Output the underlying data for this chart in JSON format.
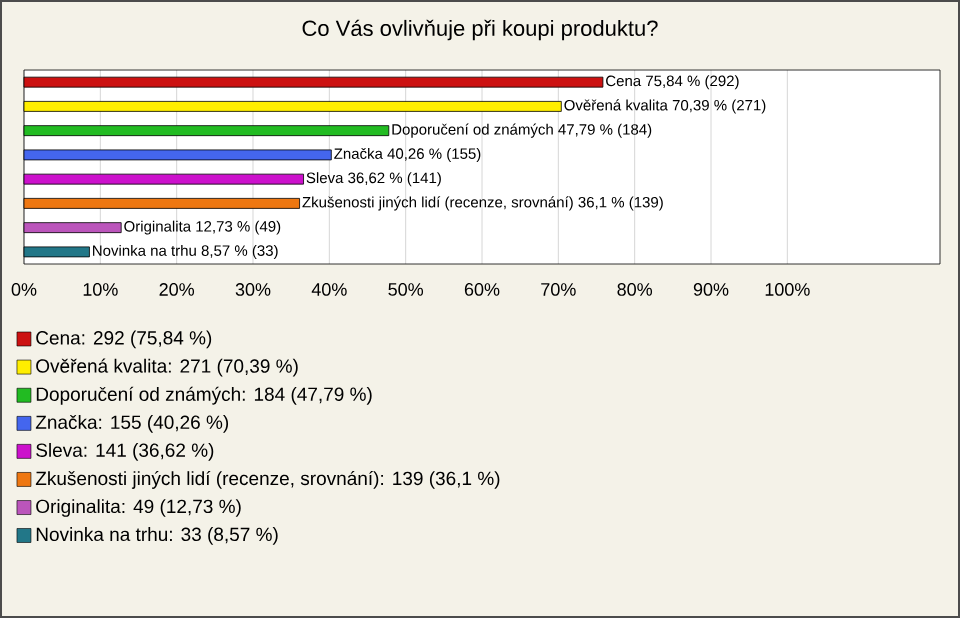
{
  "chart_data": {
    "type": "bar",
    "orientation": "horizontal",
    "title": "Co Vás ovlivňuje při koupi produktu?",
    "categories": [
      null,
      null,
      null,
      null,
      null,
      null,
      null,
      null
    ],
    "series": [
      {
        "name": "Cena: 292 (75,84 %)",
        "color": "#cc1111",
        "values": [
          75.84,
          null,
          null,
          null,
          null,
          null,
          null,
          null
        ],
        "value_labels": [
          "Cena 75,84 % (292)",
          null,
          null,
          null,
          null,
          null,
          null,
          null
        ]
      },
      {
        "name": "Ověřená kvalita: 271 (70,39 %)",
        "color": "#ffee00",
        "values": [
          null,
          70.39,
          null,
          null,
          null,
          null,
          null,
          null
        ],
        "value_labels": [
          null,
          "Ověřená kvalita 70,39 % (271)",
          null,
          null,
          null,
          null,
          null,
          null
        ]
      },
      {
        "name": "Doporučení od známých: 184 (47,79 %)",
        "color": "#22bb22",
        "values": [
          null,
          null,
          47.79,
          null,
          null,
          null,
          null,
          null
        ],
        "value_labels": [
          null,
          null,
          "Doporučení od známých 47,79 % (184)",
          null,
          null,
          null,
          null,
          null
        ]
      },
      {
        "name": "Značka: 155 (40,26 %)",
        "color": "#4466ee",
        "values": [
          null,
          null,
          null,
          40.26,
          null,
          null,
          null,
          null
        ],
        "value_labels": [
          null,
          null,
          null,
          "Značka 40,26 % (155)",
          null,
          null,
          null,
          null
        ]
      },
      {
        "name": "Sleva: 141 (36,62 %)",
        "color": "#cc11cc",
        "values": [
          null,
          null,
          null,
          null,
          36.62,
          null,
          null,
          null
        ],
        "value_labels": [
          null,
          null,
          null,
          null,
          "Sleva 36,62 % (141)",
          null,
          null,
          null
        ]
      },
      {
        "name": "Zkušenosti jiných lidí (recenze, srovnání): 139 (36,1 %)",
        "color": "#ee7711",
        "values": [
          null,
          null,
          null,
          null,
          null,
          36.1,
          null,
          null
        ],
        "value_labels": [
          null,
          null,
          null,
          null,
          null,
          "Zkušenosti jiných lidí (recenze, srovnání) 36,1 % (139)",
          null,
          null
        ]
      },
      {
        "name": "Originalita: 49 (12,73 %)",
        "color": "#bb55bb",
        "values": [
          null,
          null,
          null,
          null,
          null,
          null,
          12.73,
          null
        ],
        "value_labels": [
          null,
          null,
          null,
          null,
          null,
          null,
          "Originalita 12,73 % (49)",
          null
        ]
      },
      {
        "name": "Novinka na trhu: 33 (8,57 %)",
        "color": "#227788",
        "values": [
          null,
          null,
          null,
          null,
          null,
          null,
          null,
          8.57
        ],
        "value_labels": [
          null,
          null,
          null,
          null,
          null,
          null,
          null,
          "Novinka na trhu 8,57 % (33)"
        ]
      }
    ],
    "xlim": [
      0,
      120
    ],
    "xticks": [
      {
        "value": 0,
        "label": "0%"
      },
      {
        "value": 10,
        "label": "10%"
      },
      {
        "value": 20,
        "label": "20%"
      },
      {
        "value": 30,
        "label": "30%"
      },
      {
        "value": 40,
        "label": "40%"
      },
      {
        "value": 50,
        "label": "50%"
      },
      {
        "value": 60,
        "label": "60%"
      },
      {
        "value": 70,
        "label": "70%"
      },
      {
        "value": 80,
        "label": "80%"
      },
      {
        "value": 90,
        "label": "90%"
      },
      {
        "value": 100,
        "label": "100%"
      }
    ],
    "grid": "x",
    "legend": "bottom"
  }
}
